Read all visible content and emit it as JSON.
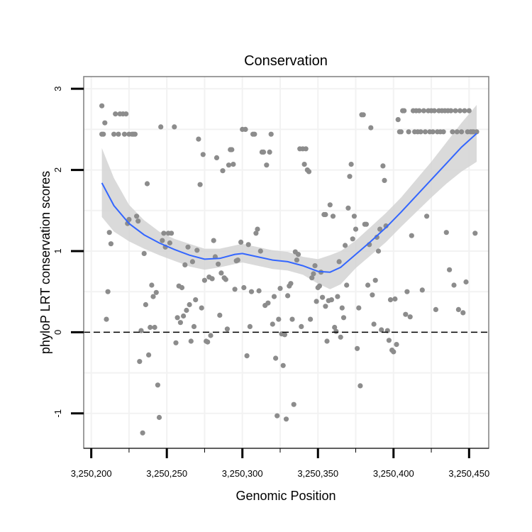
{
  "chart_data": {
    "type": "scatter",
    "title": "Conservation",
    "xlabel": "Genomic Position",
    "ylabel": "phyloP LRT conservation scores",
    "xlim": [
      3250195,
      3250463
    ],
    "ylim": [
      -1.43,
      3.15
    ],
    "xticks": [
      3250200,
      3250250,
      3250300,
      3250350,
      3250400,
      3250450
    ],
    "xtick_labels": [
      "3,250,200",
      "3,250,250",
      "3,250,300",
      "3,250,350",
      "3,250,400",
      "3,250,450"
    ],
    "yticks": [
      -1,
      0,
      1,
      2,
      3
    ],
    "ytick_labels": [
      "-1",
      "0",
      "1",
      "2",
      "3"
    ],
    "grid": true,
    "reference_line": {
      "y": 0,
      "style": "dashed"
    },
    "colors": {
      "points": "#8c8c8c",
      "smooth": "#3366ff",
      "band": "#d3d3d3",
      "border": "#7f7f7f",
      "grid": "#f2f2f2"
    },
    "series": [
      {
        "name": "phyloP scores",
        "kind": "points",
        "points": [
          [
            3250207,
            2.79
          ],
          [
            3250207,
            2.44
          ],
          [
            3250208,
            2.44
          ],
          [
            3250209,
            2.58
          ],
          [
            3250210,
            0.16
          ],
          [
            3250211,
            0.5
          ],
          [
            3250212,
            1.23
          ],
          [
            3250213,
            1.09
          ],
          [
            3250215,
            2.44
          ],
          [
            3250216,
            2.69
          ],
          [
            3250218,
            2.44
          ],
          [
            3250219,
            2.69
          ],
          [
            3250221,
            2.69
          ],
          [
            3250222,
            2.44
          ],
          [
            3250223,
            2.69
          ],
          [
            3250225,
            2.44
          ],
          [
            3250224,
            1.34
          ],
          [
            3250225,
            1.39
          ],
          [
            3250227,
            2.44
          ],
          [
            3250228,
            2.44
          ],
          [
            3250229,
            2.44
          ],
          [
            3250230,
            1.43
          ],
          [
            3250231,
            1.37
          ],
          [
            3250232,
            -0.36
          ],
          [
            3250233,
            0.02
          ],
          [
            3250234,
            -1.24
          ],
          [
            3250235,
            0.97
          ],
          [
            3250236,
            0.34
          ],
          [
            3250237,
            1.83
          ],
          [
            3250238,
            -0.28
          ],
          [
            3250239,
            0.06
          ],
          [
            3250240,
            0.58
          ],
          [
            3250241,
            0.44
          ],
          [
            3250242,
            0.06
          ],
          [
            3250243,
            0.49
          ],
          [
            3250244,
            -0.65
          ],
          [
            3250245,
            -1.05
          ],
          [
            3250246,
            2.53
          ],
          [
            3250247,
            1.13
          ],
          [
            3250248,
            1.22
          ],
          [
            3250249,
            1.05
          ],
          [
            3250251,
            1.22
          ],
          [
            3250252,
            1.1
          ],
          [
            3250253,
            1.22
          ],
          [
            3250255,
            2.53
          ],
          [
            3250256,
            -0.13
          ],
          [
            3250257,
            0.18
          ],
          [
            3250258,
            0.57
          ],
          [
            3250259,
            0.12
          ],
          [
            3250260,
            0.55
          ],
          [
            3250261,
            0.2
          ],
          [
            3250262,
            0.83
          ],
          [
            3250263,
            0.27
          ],
          [
            3250264,
            1.05
          ],
          [
            3250265,
            0.34
          ],
          [
            3250266,
            -0.11
          ],
          [
            3250267,
            0.87
          ],
          [
            3250268,
            0.07
          ],
          [
            3250269,
            0.4
          ],
          [
            3250270,
            1.01
          ],
          [
            3250271,
            2.38
          ],
          [
            3250272,
            1.82
          ],
          [
            3250273,
            0.3
          ],
          [
            3250274,
            2.19
          ],
          [
            3250275,
            0.64
          ],
          [
            3250276,
            -0.11
          ],
          [
            3250277,
            -0.12
          ],
          [
            3250278,
            0.68
          ],
          [
            3250279,
            -0.04
          ],
          [
            3250280,
            0.66
          ],
          [
            3250281,
            1.13
          ],
          [
            3250282,
            0.93
          ],
          [
            3250283,
            2.15
          ],
          [
            3250284,
            0.84
          ],
          [
            3250285,
            0.21
          ],
          [
            3250286,
            0.73
          ],
          [
            3250287,
            1.99
          ],
          [
            3250288,
            0.67
          ],
          [
            3250289,
            0.65
          ],
          [
            3250290,
            0.04
          ],
          [
            3250291,
            2.06
          ],
          [
            3250292,
            2.25
          ],
          [
            3250293,
            2.25
          ],
          [
            3250294,
            2.07
          ],
          [
            3250295,
            0.53
          ],
          [
            3250296,
            0.88
          ],
          [
            3250297,
            0.89
          ],
          [
            3250299,
            1.11
          ],
          [
            3250300,
            2.5
          ],
          [
            3250301,
            0.55
          ],
          [
            3250302,
            2.5
          ],
          [
            3250303,
            -0.29
          ],
          [
            3250304,
            1.08
          ],
          [
            3250305,
            0.07
          ],
          [
            3250306,
            0.5
          ],
          [
            3250307,
            2.44
          ],
          [
            3250308,
            2.44
          ],
          [
            3250309,
            1.22
          ],
          [
            3250310,
            1.27
          ],
          [
            3250311,
            0.51
          ],
          [
            3250312,
            1.0
          ],
          [
            3250313,
            2.22
          ],
          [
            3250314,
            2.22
          ],
          [
            3250315,
            0.33
          ],
          [
            3250316,
            2.06
          ],
          [
            3250317,
            0.36
          ],
          [
            3250318,
            2.22
          ],
          [
            3250319,
            2.44
          ],
          [
            3250320,
            0.1
          ],
          [
            3250321,
            0.44
          ],
          [
            3250322,
            -0.32
          ],
          [
            3250323,
            -1.03
          ],
          [
            3250324,
            0.16
          ],
          [
            3250325,
            0.54
          ],
          [
            3250326,
            -0.02
          ],
          [
            3250327,
            -0.41
          ],
          [
            3250328,
            -0.03
          ],
          [
            3250329,
            -1.07
          ],
          [
            3250330,
            0.45
          ],
          [
            3250331,
            0.57
          ],
          [
            3250332,
            0.6
          ],
          [
            3250333,
            0.16
          ],
          [
            3250334,
            -0.89
          ],
          [
            3250335,
            0.99
          ],
          [
            3250336,
            0.89
          ],
          [
            3250337,
            0.96
          ],
          [
            3250338,
            2.26
          ],
          [
            3250339,
            0.07
          ],
          [
            3250340,
            2.26
          ],
          [
            3250341,
            2.07
          ],
          [
            3250342,
            2.26
          ],
          [
            3250343,
            2.0
          ],
          [
            3250344,
            1.98
          ],
          [
            3250345,
            0.16
          ],
          [
            3250346,
            0.67
          ],
          [
            3250347,
            0.72
          ],
          [
            3250348,
            0.82
          ],
          [
            3250349,
            0.38
          ],
          [
            3250350,
            0.55
          ],
          [
            3250351,
            0.57
          ],
          [
            3250352,
            0.74
          ],
          [
            3250353,
            0.43
          ],
          [
            3250354,
            1.45
          ],
          [
            3250355,
            1.45
          ],
          [
            3250355,
            0.32
          ],
          [
            3250356,
            -0.11
          ],
          [
            3250357,
            0.39
          ],
          [
            3250358,
            1.57
          ],
          [
            3250359,
            0.4
          ],
          [
            3250360,
            1.43
          ],
          [
            3250361,
            0.06
          ],
          [
            3250362,
            0.01
          ],
          [
            3250363,
            0.44
          ],
          [
            3250364,
            0.87
          ],
          [
            3250365,
            -0.06
          ],
          [
            3250366,
            0.3
          ],
          [
            3250367,
            0.18
          ],
          [
            3250368,
            1.07
          ],
          [
            3250369,
            0.58
          ],
          [
            3250370,
            1.53
          ],
          [
            3250371,
            1.92
          ],
          [
            3250372,
            2.07
          ],
          [
            3250373,
            1.15
          ],
          [
            3250374,
            1.43
          ],
          [
            3250375,
            1.27
          ],
          [
            3250376,
            -0.2
          ],
          [
            3250377,
            0.3
          ],
          [
            3250378,
            -0.66
          ],
          [
            3250379,
            2.68
          ],
          [
            3250380,
            2.68
          ],
          [
            3250381,
            1.33
          ],
          [
            3250382,
            1.33
          ],
          [
            3250383,
            0.58
          ],
          [
            3250384,
            1.08
          ],
          [
            3250385,
            2.52
          ],
          [
            3250386,
            0.46
          ],
          [
            3250387,
            0.1
          ],
          [
            3250388,
            0.64
          ],
          [
            3250389,
            1.17
          ],
          [
            3250390,
            1.0
          ],
          [
            3250391,
            1.27
          ],
          [
            3250392,
            0.03
          ],
          [
            3250393,
            2.05
          ],
          [
            3250394,
            1.87
          ],
          [
            3250395,
            1.31
          ],
          [
            3250396,
            0.02
          ],
          [
            3250397,
            -0.1
          ],
          [
            3250398,
            0.4
          ],
          [
            3250399,
            -0.22
          ],
          [
            3250400,
            -0.24
          ],
          [
            3250401,
            0.41
          ],
          [
            3250402,
            -0.15
          ],
          [
            3250403,
            2.62
          ],
          [
            3250404,
            2.47
          ],
          [
            3250405,
            2.47
          ],
          [
            3250406,
            2.73
          ],
          [
            3250407,
            2.73
          ],
          [
            3250408,
            0.22
          ],
          [
            3250409,
            0.5
          ],
          [
            3250410,
            2.47
          ],
          [
            3250411,
            0.19
          ],
          [
            3250412,
            1.19
          ],
          [
            3250413,
            2.73
          ],
          [
            3250414,
            2.47
          ],
          [
            3250415,
            2.73
          ],
          [
            3250416,
            2.47
          ],
          [
            3250417,
            2.73
          ],
          [
            3250418,
            2.47
          ],
          [
            3250419,
            0.52
          ],
          [
            3250420,
            2.73
          ],
          [
            3250421,
            2.47
          ],
          [
            3250422,
            1.43
          ],
          [
            3250423,
            2.73
          ],
          [
            3250424,
            2.47
          ],
          [
            3250425,
            2.73
          ],
          [
            3250426,
            2.47
          ],
          [
            3250427,
            2.73
          ],
          [
            3250428,
            0.28
          ],
          [
            3250429,
            2.47
          ],
          [
            3250430,
            2.73
          ],
          [
            3250431,
            2.47
          ],
          [
            3250432,
            2.73
          ],
          [
            3250433,
            2.47
          ],
          [
            3250434,
            2.73
          ],
          [
            3250435,
            1.23
          ],
          [
            3250436,
            2.73
          ],
          [
            3250437,
            0.77
          ],
          [
            3250438,
            2.73
          ],
          [
            3250439,
            2.47
          ],
          [
            3250440,
            0.58
          ],
          [
            3250441,
            2.73
          ],
          [
            3250442,
            2.47
          ],
          [
            3250443,
            0.28
          ],
          [
            3250444,
            2.73
          ],
          [
            3250445,
            2.47
          ],
          [
            3250446,
            0.24
          ],
          [
            3250447,
            2.73
          ],
          [
            3250448,
            0.62
          ],
          [
            3250449,
            2.47
          ],
          [
            3250450,
            2.73
          ],
          [
            3250451,
            2.47
          ],
          [
            3250452,
            2.47
          ],
          [
            3250453,
            2.47
          ],
          [
            3250454,
            1.22
          ],
          [
            3250455,
            2.47
          ]
        ]
      },
      {
        "name": "loess fit",
        "kind": "line",
        "x": [
          3250207,
          3250215,
          3250225,
          3250235,
          3250245,
          3250255,
          3250265,
          3250275,
          3250285,
          3250295,
          3250300,
          3250310,
          3250320,
          3250330,
          3250340,
          3250350,
          3250358,
          3250365,
          3250375,
          3250385,
          3250395,
          3250405,
          3250415,
          3250425,
          3250435,
          3250445,
          3250455
        ],
        "y": [
          1.84,
          1.56,
          1.34,
          1.2,
          1.1,
          1.02,
          0.95,
          0.9,
          0.91,
          0.96,
          0.97,
          0.93,
          0.89,
          0.87,
          0.82,
          0.75,
          0.74,
          0.8,
          0.96,
          1.12,
          1.29,
          1.48,
          1.68,
          1.88,
          2.08,
          2.28,
          2.45
        ],
        "lower": [
          1.42,
          1.24,
          1.12,
          1.03,
          0.95,
          0.88,
          0.81,
          0.77,
          0.8,
          0.84,
          0.86,
          0.82,
          0.78,
          0.76,
          0.71,
          0.6,
          0.53,
          0.59,
          0.79,
          0.95,
          1.11,
          1.3,
          1.48,
          1.66,
          1.83,
          1.98,
          2.1
        ],
        "upper": [
          2.27,
          1.9,
          1.57,
          1.38,
          1.24,
          1.15,
          1.09,
          1.03,
          1.03,
          1.07,
          1.09,
          1.05,
          1.01,
          0.99,
          0.93,
          0.9,
          0.95,
          1.0,
          1.13,
          1.3,
          1.47,
          1.66,
          1.88,
          2.1,
          2.34,
          2.58,
          2.8
        ]
      }
    ]
  }
}
